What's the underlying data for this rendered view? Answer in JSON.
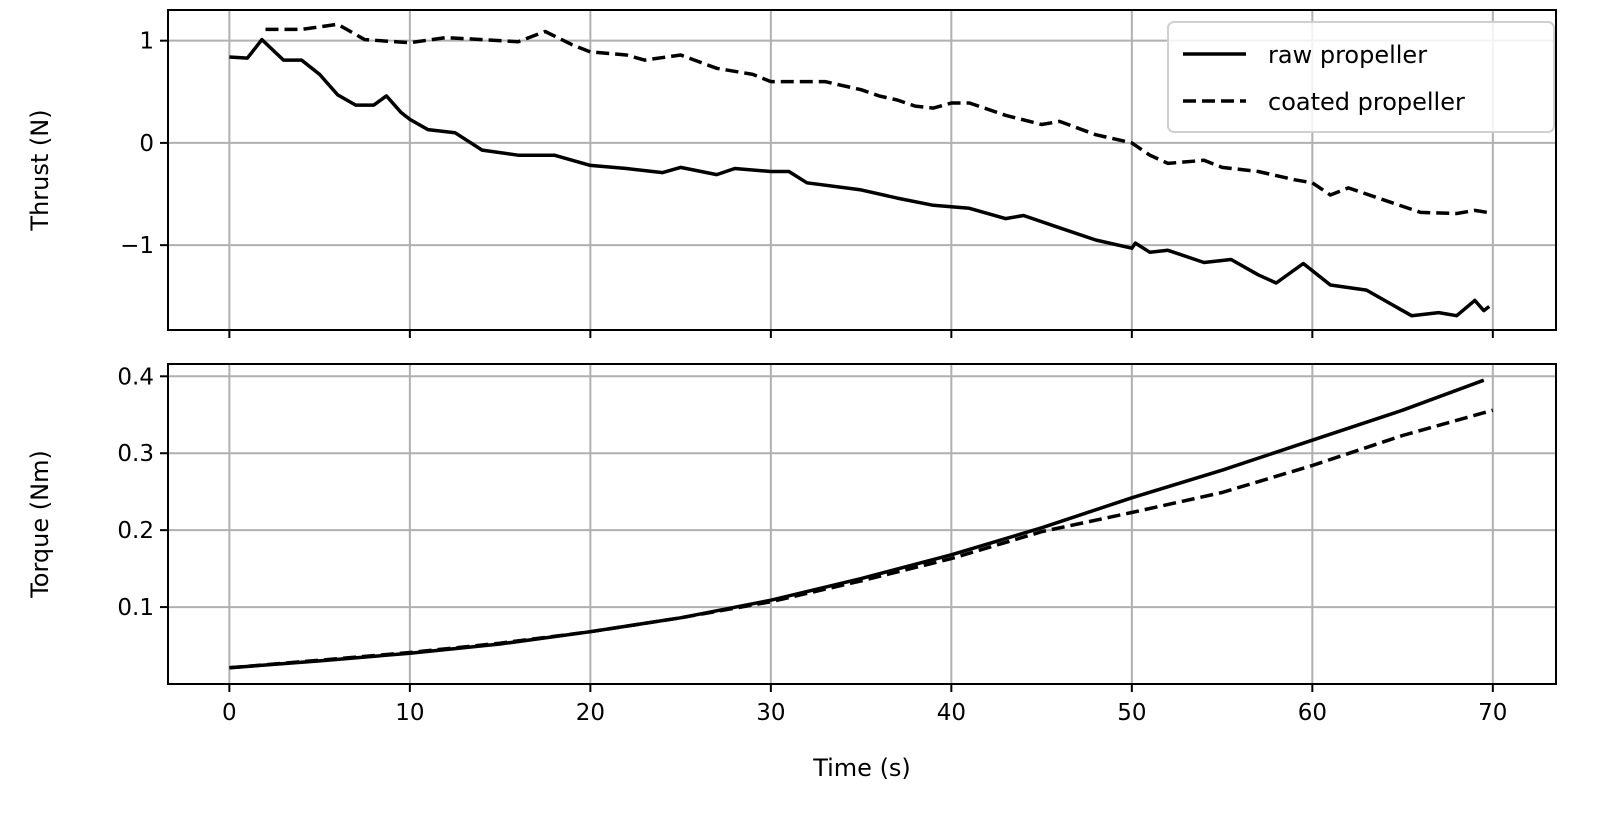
{
  "chart_data": [
    {
      "type": "line",
      "xlabel": "",
      "ylabel": "Thrust (N)",
      "xlim": [
        -3.4,
        73.5
      ],
      "ylim": [
        -1.83,
        1.3
      ],
      "xticks": [
        0,
        10,
        20,
        30,
        40,
        50,
        60,
        70
      ],
      "yticks": [
        {
          "v": 1,
          "label": "1"
        },
        {
          "v": 0,
          "label": "0"
        },
        {
          "v": -1,
          "label": "−1"
        }
      ],
      "grid": true,
      "legend": "top-right",
      "series": [
        {
          "name": "raw propeller",
          "style": "solid",
          "color": "#000000",
          "x": [
            0,
            1,
            1.8,
            3,
            4,
            5,
            6,
            7,
            8,
            8.7,
            9.5,
            10,
            11,
            12.5,
            14,
            16,
            18,
            20,
            22,
            24,
            25,
            27,
            28,
            30,
            31,
            32,
            35,
            37,
            39,
            41,
            43,
            44,
            46,
            48,
            50,
            50.2,
            51,
            52,
            54,
            55.5,
            57,
            58,
            59.5,
            61,
            63,
            64.5,
            65.5,
            67,
            68,
            69,
            69.5,
            69.8
          ],
          "y": [
            0.84,
            0.83,
            1.01,
            0.81,
            0.81,
            0.67,
            0.47,
            0.37,
            0.37,
            0.46,
            0.3,
            0.23,
            0.13,
            0.1,
            -0.07,
            -0.12,
            -0.12,
            -0.22,
            -0.25,
            -0.29,
            -0.24,
            -0.31,
            -0.25,
            -0.28,
            -0.28,
            -0.39,
            -0.46,
            -0.54,
            -0.61,
            -0.64,
            -0.74,
            -0.71,
            -0.83,
            -0.95,
            -1.03,
            -0.98,
            -1.07,
            -1.05,
            -1.17,
            -1.14,
            -1.29,
            -1.37,
            -1.18,
            -1.39,
            -1.44,
            -1.59,
            -1.69,
            -1.66,
            -1.69,
            -1.54,
            -1.64,
            -1.6
          ]
        },
        {
          "name": "coated propeller",
          "style": "dashed",
          "color": "#000000",
          "x": [
            2,
            4,
            6,
            7.5,
            10,
            12,
            14,
            16,
            17.5,
            19,
            20,
            22,
            23,
            25,
            27,
            29,
            30,
            33,
            35,
            36,
            37,
            38,
            39,
            40,
            41,
            43,
            45,
            46,
            48,
            50,
            51,
            52,
            54,
            55,
            57,
            59,
            60,
            61,
            62,
            64,
            66,
            68,
            69,
            69.7
          ],
          "y": [
            1.11,
            1.11,
            1.16,
            1.01,
            0.98,
            1.03,
            1.01,
            0.99,
            1.09,
            0.96,
            0.89,
            0.86,
            0.81,
            0.86,
            0.73,
            0.67,
            0.6,
            0.6,
            0.52,
            0.46,
            0.42,
            0.36,
            0.34,
            0.39,
            0.39,
            0.27,
            0.18,
            0.21,
            0.08,
            0.0,
            -0.12,
            -0.2,
            -0.17,
            -0.24,
            -0.28,
            -0.36,
            -0.39,
            -0.51,
            -0.44,
            -0.56,
            -0.68,
            -0.69,
            -0.66,
            -0.68
          ]
        }
      ]
    },
    {
      "type": "line",
      "xlabel": "Time (s)",
      "ylabel": "Torque (Nm)",
      "xlim": [
        -3.4,
        73.5
      ],
      "ylim": [
        0.0,
        0.416
      ],
      "xticks": [
        0,
        10,
        20,
        30,
        40,
        50,
        60,
        70
      ],
      "yticks": [
        {
          "v": 0.1,
          "label": "0.1"
        },
        {
          "v": 0.2,
          "label": "0.2"
        },
        {
          "v": 0.3,
          "label": "0.3"
        },
        {
          "v": 0.4,
          "label": "0.4"
        }
      ],
      "grid": true,
      "series": [
        {
          "name": "raw propeller",
          "style": "solid",
          "color": "#000000",
          "x": [
            0,
            5,
            10,
            15,
            20,
            25,
            30,
            35,
            40,
            45,
            50,
            55,
            60,
            65,
            69.5
          ],
          "y": [
            0.021,
            0.03,
            0.04,
            0.052,
            0.068,
            0.086,
            0.109,
            0.137,
            0.168,
            0.203,
            0.242,
            0.278,
            0.317,
            0.356,
            0.395
          ]
        },
        {
          "name": "coated propeller",
          "style": "dashed",
          "color": "#000000",
          "x": [
            0,
            5,
            10,
            15,
            20,
            25,
            30,
            35,
            40,
            45,
            50,
            55,
            60,
            65,
            70
          ],
          "y": [
            0.021,
            0.031,
            0.041,
            0.053,
            0.068,
            0.086,
            0.107,
            0.134,
            0.163,
            0.198,
            0.223,
            0.249,
            0.284,
            0.323,
            0.356
          ]
        }
      ]
    }
  ]
}
